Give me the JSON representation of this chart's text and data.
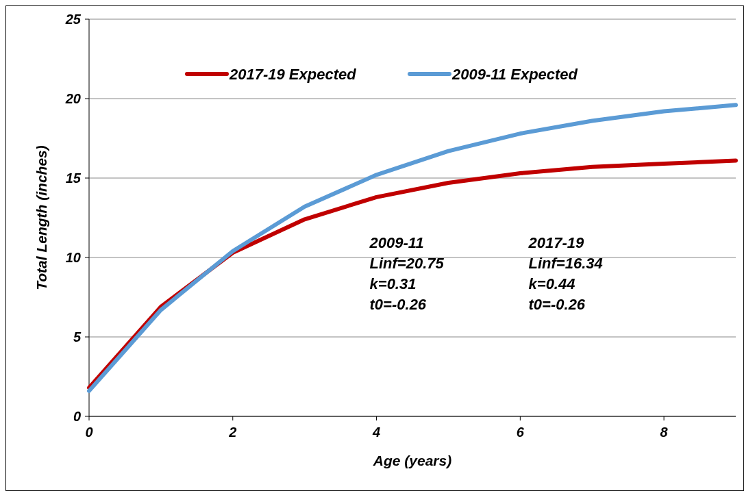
{
  "chart_data": {
    "type": "line",
    "xlabel": "Age (years)",
    "ylabel": "Total Length (inches)",
    "x": [
      0,
      1,
      2,
      3,
      4,
      5,
      6,
      7,
      8,
      9
    ],
    "series": [
      {
        "name": "2017-19 Expected",
        "color": "#c00000",
        "values": [
          1.8,
          6.9,
          10.3,
          12.4,
          13.8,
          14.7,
          15.3,
          15.7,
          15.9,
          16.1
        ]
      },
      {
        "name": "2009-11 Expected",
        "color": "#5b9bd5",
        "values": [
          1.6,
          6.7,
          10.4,
          13.2,
          15.2,
          16.7,
          17.8,
          18.6,
          19.2,
          19.6
        ]
      }
    ],
    "xlim": [
      0,
      9
    ],
    "xticks": [
      0,
      2,
      4,
      6,
      8
    ],
    "ylim": [
      0,
      25
    ],
    "yticks": [
      0,
      5,
      10,
      15,
      20,
      25
    ],
    "grid": "y",
    "legend": "top",
    "marker": "none",
    "line_style": "solid",
    "annotations": [
      "2009-11\nLinf=20.75\nk=0.31\nt0=-0.26",
      "2017-19\nLinf=16.34\nk=0.44\nt0=-0.26"
    ]
  }
}
